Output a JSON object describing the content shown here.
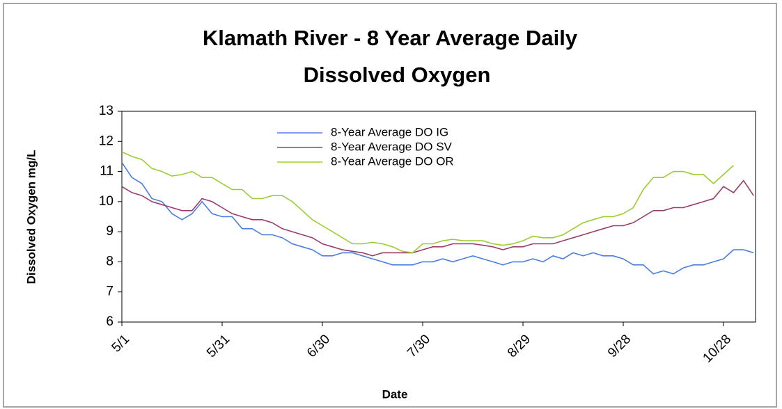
{
  "chart_data": {
    "type": "line",
    "title": [
      "Klamath River - 8 Year Average Daily",
      "Dissolved Oxygen"
    ],
    "xlabel": "Date",
    "ylabel": "Dissolved Oxygen mg/L",
    "categories": [
      "5/1",
      null,
      null,
      null,
      null,
      null,
      null,
      null,
      null,
      null,
      "5/31",
      null,
      null,
      null,
      null,
      null,
      null,
      null,
      null,
      null,
      "6/30",
      null,
      null,
      null,
      null,
      null,
      null,
      null,
      null,
      null,
      "7/30",
      null,
      null,
      null,
      null,
      null,
      null,
      null,
      null,
      null,
      "8/29",
      null,
      null,
      null,
      null,
      null,
      null,
      null,
      null,
      null,
      "9/28",
      null,
      null,
      null,
      null,
      null,
      null,
      null,
      null,
      null,
      "10/28",
      null,
      null,
      null
    ],
    "ylim": [
      6,
      13
    ],
    "yticks": [
      6,
      7,
      8,
      9,
      10,
      11,
      12,
      13
    ],
    "series": [
      {
        "name": "8-Year Average DO IG",
        "color": "#4a7fe0",
        "values": [
          11.3,
          10.8,
          10.6,
          10.1,
          10.0,
          9.6,
          9.4,
          9.6,
          10.0,
          9.6,
          9.5,
          9.5,
          9.1,
          9.1,
          8.9,
          8.9,
          8.8,
          8.6,
          8.5,
          8.4,
          8.2,
          8.2,
          8.3,
          8.3,
          8.2,
          8.1,
          8.0,
          7.9,
          7.9,
          7.9,
          8.0,
          8.0,
          8.1,
          8.0,
          8.1,
          8.2,
          8.1,
          8.0,
          7.9,
          8.0,
          8.0,
          8.1,
          8.0,
          8.2,
          8.1,
          8.3,
          8.2,
          8.3,
          8.2,
          8.2,
          8.1,
          7.9,
          7.9,
          7.6,
          7.7,
          7.6,
          7.8,
          7.9,
          7.9,
          8.0,
          8.1,
          8.4,
          8.4,
          8.3
        ]
      },
      {
        "name": "8-Year Average DO SV",
        "color": "#9b3b6a",
        "values": [
          10.5,
          10.3,
          10.2,
          10.0,
          9.9,
          9.8,
          9.7,
          9.7,
          10.1,
          10.0,
          9.8,
          9.6,
          9.5,
          9.4,
          9.4,
          9.3,
          9.1,
          9.0,
          8.9,
          8.8,
          8.6,
          8.5,
          8.4,
          8.35,
          8.3,
          8.2,
          8.3,
          8.3,
          8.3,
          8.3,
          8.4,
          8.5,
          8.5,
          8.6,
          8.6,
          8.6,
          8.55,
          8.5,
          8.4,
          8.5,
          8.5,
          8.6,
          8.6,
          8.6,
          8.7,
          8.8,
          8.9,
          9.0,
          9.1,
          9.2,
          9.2,
          9.3,
          9.5,
          9.7,
          9.7,
          9.8,
          9.8,
          9.9,
          10.0,
          10.1,
          10.5,
          10.3,
          10.7,
          10.2
        ]
      },
      {
        "name": "8-Year Average DO OR",
        "color": "#9acd32",
        "values": [
          11.65,
          11.5,
          11.4,
          11.1,
          11.0,
          10.85,
          10.9,
          11.0,
          10.8,
          10.8,
          10.6,
          10.4,
          10.4,
          10.1,
          10.1,
          10.2,
          10.2,
          10.0,
          9.7,
          9.4,
          9.2,
          9.0,
          8.8,
          8.6,
          8.6,
          8.65,
          8.6,
          8.5,
          8.35,
          8.3,
          8.6,
          8.6,
          8.7,
          8.75,
          8.7,
          8.7,
          8.7,
          8.6,
          8.55,
          8.6,
          8.7,
          8.85,
          8.8,
          8.8,
          8.9,
          9.1,
          9.3,
          9.4,
          9.5,
          9.5,
          9.6,
          9.8,
          10.4,
          10.8,
          10.8,
          11.0,
          11.0,
          10.9,
          10.9,
          10.6,
          10.9,
          11.2,
          null,
          null
        ]
      }
    ]
  }
}
